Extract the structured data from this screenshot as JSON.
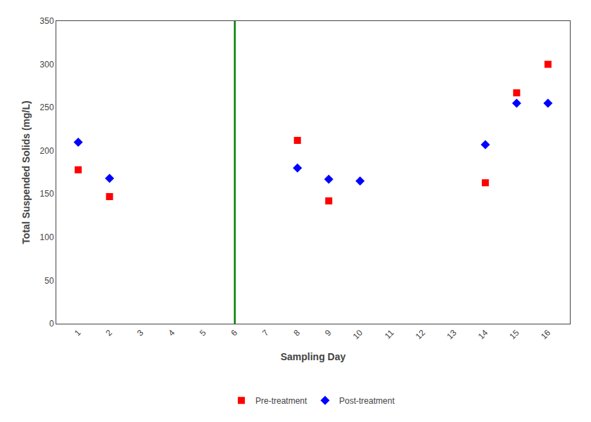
{
  "chart_data": {
    "type": "scatter",
    "x_label": "Sampling Day",
    "y_label": "Total Suspended Solids (mg/L)",
    "series": [
      {
        "name": "Pre-treatment",
        "color": "#FF0000",
        "marker": "square",
        "x": [
          1,
          2,
          8,
          9,
          14,
          15,
          16
        ],
        "values": [
          178,
          147,
          212,
          142,
          163,
          267,
          300
        ]
      },
      {
        "name": "Post-treatment",
        "color": "#0000FF",
        "marker": "diamond",
        "x": [
          1,
          2,
          8,
          9,
          10,
          14,
          15,
          16
        ],
        "values": [
          210,
          168,
          180,
          167,
          165,
          207,
          255,
          255
        ]
      }
    ],
    "vline": {
      "x": 6,
      "color": "#008000"
    },
    "xlim": [
      0.3,
      16.7
    ],
    "xticks": [
      1,
      2,
      3,
      4,
      5,
      6,
      7,
      8,
      9,
      10,
      11,
      12,
      13,
      14,
      15,
      16
    ],
    "ylim": [
      0,
      350
    ],
    "yticks": [
      0,
      50,
      100,
      150,
      200,
      250,
      300,
      350
    ],
    "grid": false,
    "legend": "bottom"
  }
}
